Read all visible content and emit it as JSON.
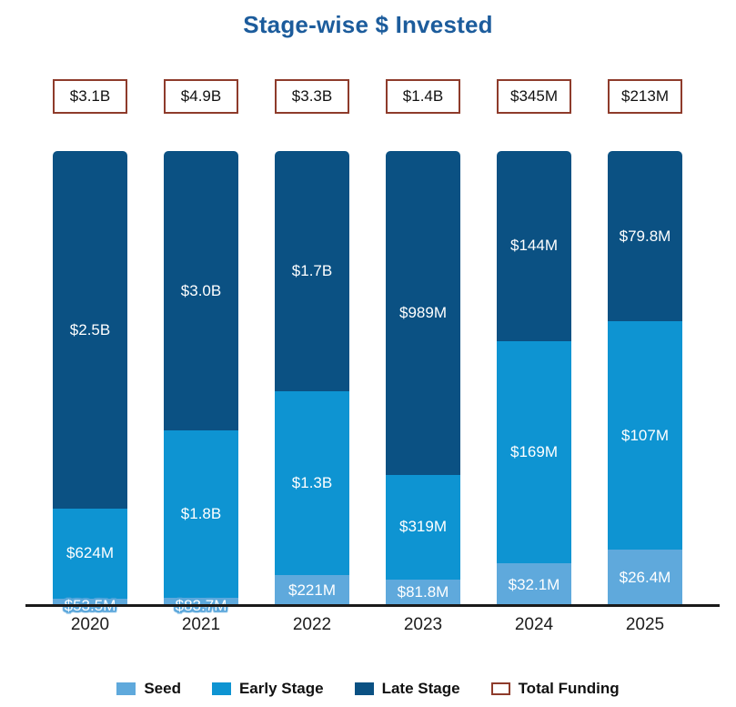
{
  "title": "Stage-wise $ Invested",
  "colors": {
    "title": "#1c5c9c",
    "seed": "#5fa9dc",
    "early_stage": "#0e94d2",
    "late_stage": "#0b5183",
    "total_funding_border": "#8e3b2b",
    "axis": "#1a1a1a",
    "segment_label_text": "#ffffff",
    "year_text": "#1d1d1d"
  },
  "chart_data": {
    "type": "bar",
    "variant": "stacked-100-percent",
    "title": "Stage-wise $ Invested",
    "categories": [
      "2020",
      "2021",
      "2022",
      "2023",
      "2024",
      "2025"
    ],
    "unit": "USD millions",
    "series": [
      {
        "name": "Seed",
        "values": [
          53.5,
          83.7,
          221,
          81.8,
          32.1,
          26.4
        ],
        "labels": [
          "$53.5M",
          "$83.7M",
          "$221M",
          "$81.8M",
          "$32.1M",
          "$26.4M"
        ],
        "color": "#5fa9dc"
      },
      {
        "name": "Early Stage",
        "values": [
          624,
          1800,
          1300,
          319,
          169,
          107
        ],
        "labels": [
          "$624M",
          "$1.8B",
          "$1.3B",
          "$319M",
          "$169M",
          "$107M"
        ],
        "color": "#0e94d2"
      },
      {
        "name": "Late Stage",
        "values": [
          2500,
          3000,
          1700,
          989,
          144,
          79.8
        ],
        "labels": [
          "$2.5B",
          "$3.0B",
          "$1.7B",
          "$989M",
          "$144M",
          "$79.8M"
        ],
        "color": "#0b5183"
      }
    ],
    "totals": {
      "name": "Total Funding",
      "labels": [
        "$3.1B",
        "$4.9B",
        "$3.3B",
        "$1.4B",
        "$345M",
        "$213M"
      ]
    },
    "legend": [
      {
        "label": "Seed",
        "swatch": "seed"
      },
      {
        "label": "Early Stage",
        "swatch": "early_stage"
      },
      {
        "label": "Late Stage",
        "swatch": "late_stage"
      },
      {
        "label": "Total Funding",
        "swatch": "total_funding"
      }
    ],
    "legend_position": "bottom",
    "grid": false,
    "y_axis_shown": false,
    "x_axis_shown": true
  }
}
